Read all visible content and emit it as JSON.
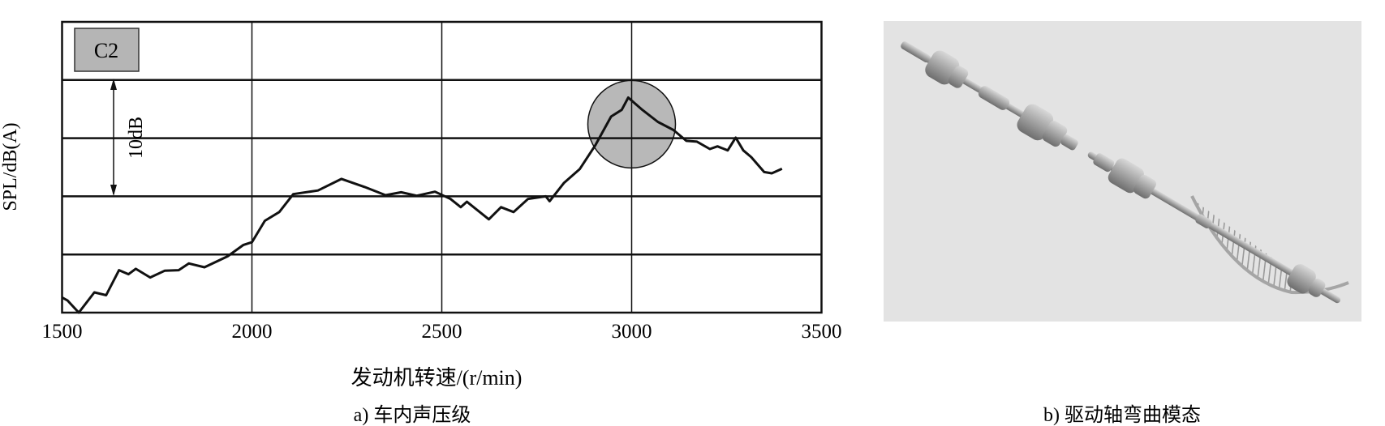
{
  "chart_data": {
    "type": "line",
    "title": "",
    "xlabel": "发动机转速/(r/min)",
    "ylabel": "SPL/dB(A)",
    "xlim": [
      1500,
      3500
    ],
    "xticks": [
      "1500",
      "2000",
      "2500",
      "3000",
      "3500"
    ],
    "ylim": [
      0,
      25
    ],
    "y_grid_step_db": 5,
    "grid": true,
    "legend_label": "C2",
    "scale_bar_label": "10dB",
    "scale_bar_db": 10,
    "series": [
      {
        "color": "#111111",
        "x": [
          1500,
          1514,
          1544,
          1585,
          1616,
          1650,
          1675,
          1694,
          1732,
          1770,
          1807,
          1834,
          1875,
          1936,
          1977,
          2000,
          2034,
          2072,
          2109,
          2174,
          2236,
          2297,
          2352,
          2393,
          2434,
          2482,
          2523,
          2550,
          2566,
          2624,
          2656,
          2689,
          2727,
          2774,
          2784,
          2822,
          2863,
          2905,
          2946,
          2974,
          2991,
          3028,
          3069,
          3110,
          3144,
          3172,
          3206,
          3226,
          3253,
          3274,
          3294,
          3315,
          3349,
          3369,
          3396
        ],
        "y": [
          1.3,
          1.05,
          0,
          1.74,
          1.5,
          3.65,
          3.3,
          3.77,
          3.02,
          3.6,
          3.65,
          4.23,
          3.9,
          4.84,
          5.81,
          6.05,
          7.9,
          8.65,
          10.19,
          10.5,
          11.5,
          10.8,
          10.1,
          10.35,
          10.05,
          10.4,
          9.77,
          9.07,
          9.53,
          8.02,
          9.07,
          8.65,
          9.77,
          10.0,
          9.58,
          11.16,
          12.33,
          14.42,
          16.86,
          17.44,
          18.49,
          17.44,
          16.4,
          15.7,
          14.77,
          14.7,
          14.07,
          14.3,
          13.95,
          15.05,
          13.95,
          13.37,
          12.09,
          11.98,
          12.37
        ]
      }
    ],
    "highlight": {
      "x": 3000,
      "y": 16.2,
      "color": "#b8b8b8"
    }
  },
  "captions": {
    "a": "a) 车内声压级",
    "b": "b) 驱动轴弯曲模态"
  },
  "colors": {
    "legend_fill": "#b5b5b5",
    "photo_bg": "#e3e3e3",
    "shaft": "#b0b0b0"
  }
}
